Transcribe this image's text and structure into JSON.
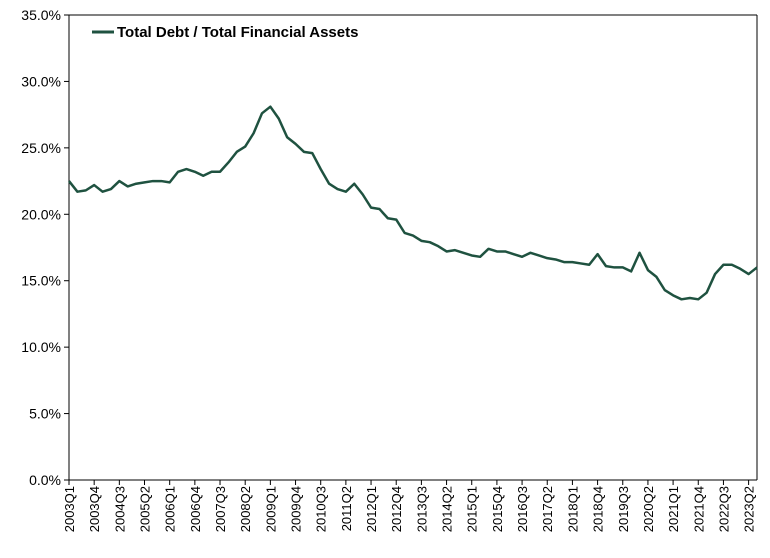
{
  "chart_data": {
    "type": "line",
    "title": "",
    "xlabel": "",
    "ylabel": "",
    "ylim": [
      0,
      35
    ],
    "y_ticks": [
      "0.0%",
      "5.0%",
      "10.0%",
      "15.0%",
      "20.0%",
      "25.0%",
      "30.0%",
      "35.0%"
    ],
    "y_tick_values": [
      0,
      5,
      10,
      15,
      20,
      25,
      30,
      35
    ],
    "x_ticks": [
      "2003Q1",
      "2003Q4",
      "2004Q3",
      "2005Q2",
      "2006Q1",
      "2006Q4",
      "2007Q3",
      "2008Q2",
      "2009Q1",
      "2009Q4",
      "2010Q3",
      "2011Q2",
      "2012Q1",
      "2012Q4",
      "2013Q3",
      "2014Q2",
      "2015Q1",
      "2015Q4",
      "2016Q3",
      "2017Q2",
      "2018Q1",
      "2018Q4",
      "2019Q3",
      "2020Q2",
      "2021Q1",
      "2021Q4",
      "2022Q3",
      "2023Q2"
    ],
    "grid": false,
    "legend_position": "top-left",
    "line_color": "#1f5240",
    "series": [
      {
        "name": "Total Debt / Total Financial Assets",
        "x": [
          "2003Q1",
          "2003Q2",
          "2003Q3",
          "2003Q4",
          "2004Q1",
          "2004Q2",
          "2004Q3",
          "2004Q4",
          "2005Q1",
          "2005Q2",
          "2005Q3",
          "2005Q4",
          "2006Q1",
          "2006Q2",
          "2006Q3",
          "2006Q4",
          "2007Q1",
          "2007Q2",
          "2007Q3",
          "2007Q4",
          "2008Q1",
          "2008Q2",
          "2008Q3",
          "2008Q4",
          "2009Q1",
          "2009Q2",
          "2009Q3",
          "2009Q4",
          "2010Q1",
          "2010Q2",
          "2010Q3",
          "2010Q4",
          "2011Q1",
          "2011Q2",
          "2011Q3",
          "2011Q4",
          "2012Q1",
          "2012Q2",
          "2012Q3",
          "2012Q4",
          "2013Q1",
          "2013Q2",
          "2013Q3",
          "2013Q4",
          "2014Q1",
          "2014Q2",
          "2014Q3",
          "2014Q4",
          "2015Q1",
          "2015Q2",
          "2015Q3",
          "2015Q4",
          "2016Q1",
          "2016Q2",
          "2016Q3",
          "2016Q4",
          "2017Q1",
          "2017Q2",
          "2017Q3",
          "2017Q4",
          "2018Q1",
          "2018Q2",
          "2018Q3",
          "2018Q4",
          "2019Q1",
          "2019Q2",
          "2019Q3",
          "2019Q4",
          "2020Q1",
          "2020Q2",
          "2020Q3",
          "2020Q4",
          "2021Q1",
          "2021Q2",
          "2021Q3",
          "2021Q4",
          "2022Q1",
          "2022Q2",
          "2022Q3",
          "2022Q4",
          "2023Q1",
          "2023Q2",
          "2023Q3"
        ],
        "values": [
          22.5,
          21.7,
          21.8,
          22.2,
          21.7,
          21.9,
          22.5,
          22.1,
          22.3,
          22.4,
          22.5,
          22.5,
          22.4,
          23.2,
          23.4,
          23.2,
          22.9,
          23.2,
          23.2,
          23.9,
          24.7,
          25.1,
          26.1,
          27.6,
          28.1,
          27.2,
          25.8,
          25.3,
          24.7,
          24.6,
          23.4,
          22.3,
          21.9,
          21.7,
          22.3,
          21.5,
          20.5,
          20.4,
          19.7,
          19.6,
          18.6,
          18.4,
          18.0,
          17.9,
          17.6,
          17.2,
          17.3,
          17.1,
          16.9,
          16.8,
          17.4,
          17.2,
          17.2,
          17.0,
          16.8,
          17.1,
          16.9,
          16.7,
          16.6,
          16.4,
          16.4,
          16.3,
          16.2,
          17.0,
          16.1,
          16.0,
          16.0,
          15.7,
          17.1,
          15.8,
          15.3,
          14.3,
          13.9,
          13.6,
          13.7,
          13.6,
          14.1,
          15.5,
          16.2,
          16.2,
          15.9,
          15.5,
          16.0
        ]
      }
    ]
  }
}
